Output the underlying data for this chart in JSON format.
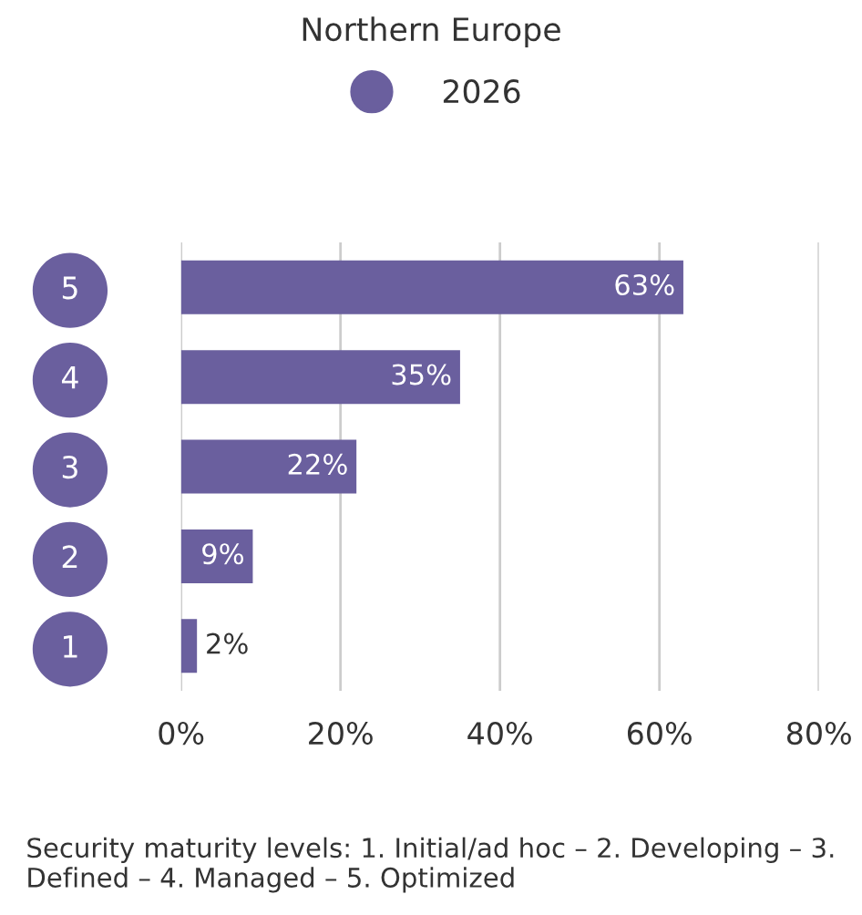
{
  "chart_data": {
    "type": "bar",
    "orientation": "horizontal",
    "title": "Northern Europe",
    "categories": [
      "5",
      "4",
      "3",
      "2",
      "1"
    ],
    "series": [
      {
        "name": "2026",
        "color": "#6a5f9e",
        "values": [
          63,
          35,
          22,
          9,
          2
        ],
        "value_labels": [
          "63%",
          "35%",
          "22%",
          "9%",
          "2%"
        ]
      }
    ],
    "xlim": [
      0,
      80
    ],
    "xticks": [
      {
        "value": 0,
        "label": "0%"
      },
      {
        "value": 20,
        "label": "20%"
      },
      {
        "value": 40,
        "label": "40%"
      },
      {
        "value": 60,
        "label": "60%"
      },
      {
        "value": 80,
        "label": "80%"
      }
    ],
    "grid": "x",
    "legend": "top",
    "marker": "circle",
    "annotations": [
      "Security maturity levels: 1. Initial/ad hoc – 2. Developing – 3. Defined – 4. Managed – 5. Optimized"
    ]
  }
}
